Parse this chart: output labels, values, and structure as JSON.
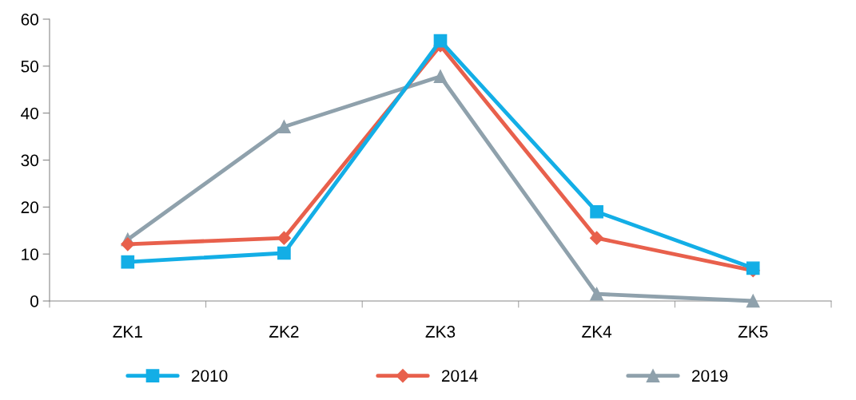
{
  "chart_data": {
    "type": "line",
    "categories": [
      "ZK1",
      "ZK2",
      "ZK3",
      "ZK4",
      "ZK5"
    ],
    "series": [
      {
        "name": "2010",
        "color": "#13aee6",
        "marker": "square",
        "values": [
          8.3,
          10.2,
          55.4,
          19.0,
          7.0
        ]
      },
      {
        "name": "2014",
        "color": "#e8604c",
        "marker": "diamond",
        "values": [
          12.1,
          13.4,
          54.4,
          13.4,
          6.5
        ]
      },
      {
        "name": "2019",
        "color": "#8fa1ac",
        "marker": "triangle",
        "values": [
          13.1,
          37.1,
          47.8,
          1.5,
          0
        ]
      }
    ],
    "ylim": [
      0,
      60
    ],
    "yticks": [
      0,
      10,
      20,
      30,
      40,
      50,
      60
    ],
    "grid": false,
    "legend": "bottom",
    "line_style": "solid"
  }
}
